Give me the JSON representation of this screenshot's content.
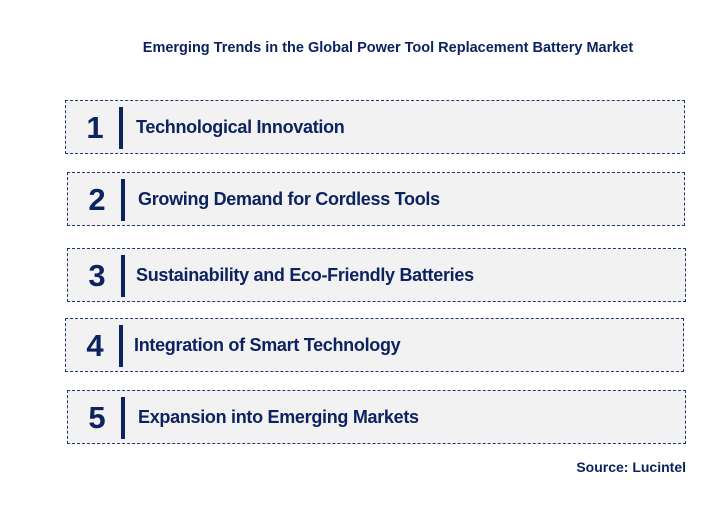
{
  "title": "Emerging Trends in the Global Power Tool Replacement Battery Market",
  "items": [
    {
      "number": "1",
      "label": "Technological Innovation"
    },
    {
      "number": "2",
      "label": "Growing Demand for Cordless Tools"
    },
    {
      "number": "3",
      "label": "Sustainability and Eco-Friendly Batteries"
    },
    {
      "number": "4",
      "label": "Integration of Smart Technology"
    },
    {
      "number": "5",
      "label": "Expansion into Emerging Markets"
    }
  ],
  "source": "Source: Lucintel",
  "colors": {
    "text": "#0d2260",
    "box_fill": "#f2f2f2",
    "border": "#1f3a6e"
  }
}
